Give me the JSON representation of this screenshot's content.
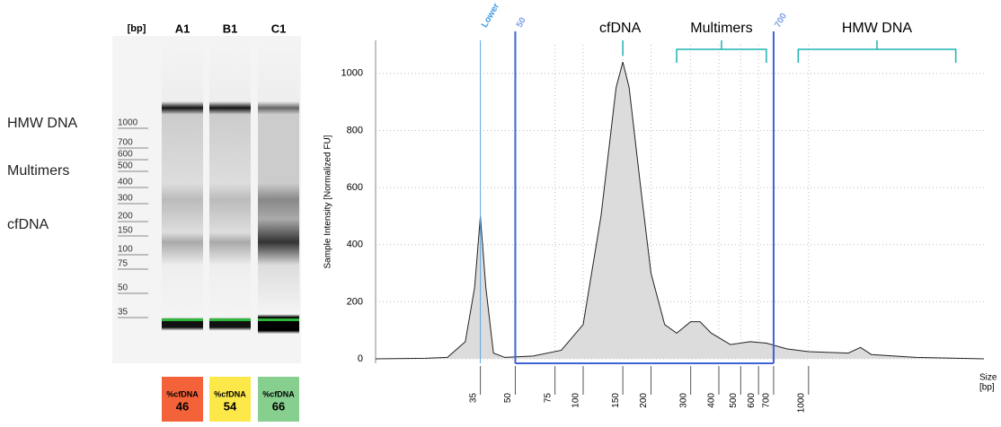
{
  "gel": {
    "unit": "[bp]",
    "lanes": [
      "A1",
      "B1",
      "C1"
    ],
    "ladder": [
      "1000",
      "700",
      "600",
      "500",
      "400",
      "300",
      "200",
      "150",
      "100",
      "75",
      "50",
      "35"
    ],
    "regions": [
      "HMW DNA",
      "Multimers",
      "cfDNA"
    ],
    "results": [
      {
        "label": "%cfDNA",
        "value": 46,
        "color": "#f4623a"
      },
      {
        "label": "%cfDNA",
        "value": 54,
        "color": "#fde84a"
      },
      {
        "label": "%cfDNA",
        "value": 66,
        "color": "#86cf8f"
      }
    ]
  },
  "chart_data": {
    "type": "area",
    "ylabel": "Sample Intensity [Normalized FU]",
    "xlabel": [
      "Size",
      "[bp]"
    ],
    "x": [
      12,
      20,
      25,
      30,
      33,
      35,
      37,
      40,
      45,
      60,
      80,
      100,
      120,
      140,
      150,
      160,
      180,
      200,
      230,
      260,
      300,
      330,
      370,
      450,
      550,
      650,
      800,
      1000,
      1500,
      1700,
      1900,
      3000,
      6000
    ],
    "values": [
      0,
      2,
      5,
      60,
      250,
      500,
      250,
      20,
      5,
      10,
      30,
      120,
      500,
      950,
      1040,
      950,
      600,
      300,
      120,
      90,
      130,
      130,
      90,
      50,
      60,
      55,
      35,
      25,
      20,
      40,
      15,
      5,
      0
    ],
    "color": "#dcdcdc",
    "log_x": true,
    "xlim": [
      12,
      6000
    ],
    "xticks": [
      35,
      50,
      75,
      100,
      150,
      200,
      300,
      400,
      500,
      600,
      700,
      1000
    ],
    "ylim": [
      0,
      1100
    ],
    "yticks": [
      0,
      200,
      400,
      600,
      800,
      1000
    ],
    "grid": true,
    "markers": [
      {
        "value": 35,
        "label": "Lower"
      },
      50,
      700
    ],
    "annotations": [
      {
        "text": "cfDNA",
        "x": 150
      },
      {
        "text": "Multimers",
        "from": 260,
        "to": 650
      },
      {
        "text": "HMW DNA",
        "from": 900,
        "to": 4500
      }
    ]
  }
}
